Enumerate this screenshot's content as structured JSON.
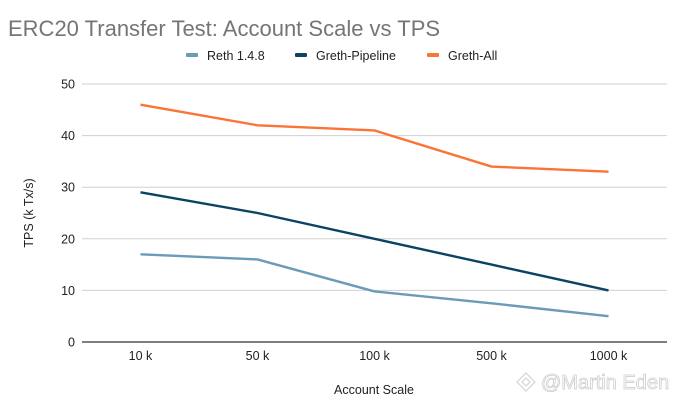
{
  "chart_data": {
    "type": "line",
    "title": "ERC20 Transfer Test: Account Scale vs TPS",
    "xlabel": "Account Scale",
    "ylabel": "TPS (k Tx/s)",
    "categories": [
      "10 k",
      "50 k",
      "100 k",
      "500 k",
      "1000 k"
    ],
    "ylim": [
      0,
      50
    ],
    "yticks": [
      "0",
      "10",
      "20",
      "30",
      "40",
      "50"
    ],
    "ytick_values": [
      0,
      10,
      20,
      30,
      40,
      50
    ],
    "grid": true,
    "legend_position": "top",
    "series": [
      {
        "name": "Reth 1.4.8",
        "color": "#6a9bb8",
        "values": [
          17,
          16,
          9.8,
          7.5,
          5
        ]
      },
      {
        "name": "Greth-Pipeline",
        "color": "#0b4462",
        "values": [
          29,
          25,
          20,
          15,
          10
        ]
      },
      {
        "name": "Greth-All",
        "color": "#fa7436",
        "values": [
          46,
          42,
          41,
          34,
          33
        ]
      }
    ]
  },
  "watermark": {
    "text": "@Martin Eden",
    "icon": "binance-logo-icon"
  }
}
